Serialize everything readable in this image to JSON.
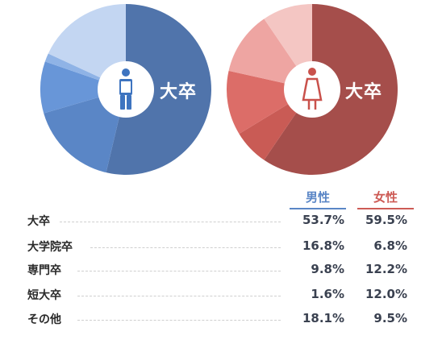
{
  "chart_data": {
    "type": "pie",
    "categories": [
      "大卒",
      "大学院卒",
      "専門卒",
      "短大卒",
      "その他"
    ],
    "series": [
      {
        "name": "男性",
        "values": [
          53.7,
          16.8,
          9.8,
          1.6,
          18.1
        ],
        "value_labels": [
          "53.7%",
          "16.8%",
          "9.8%",
          "1.6%",
          "18.1%"
        ],
        "colors": [
          "#5074ab",
          "#5a86c6",
          "#6896d8",
          "#8fb3e6",
          "#c3d6f2"
        ],
        "center_label": "大卒",
        "icon": "male-person-icon"
      },
      {
        "name": "女性",
        "values": [
          59.5,
          6.8,
          12.2,
          12.0,
          9.5
        ],
        "value_labels": [
          "59.5%",
          "6.8%",
          "12.2%",
          "12.0%",
          "9.5%"
        ],
        "colors": [
          "#a54e4b",
          "#c95b55",
          "#dc6d68",
          "#eea5a2",
          "#f4c6c3"
        ],
        "center_label": "大卒",
        "icon": "female-person-icon"
      }
    ]
  },
  "legend": {
    "male_color": "#5a86c6",
    "female_color": "#cd5b55"
  }
}
